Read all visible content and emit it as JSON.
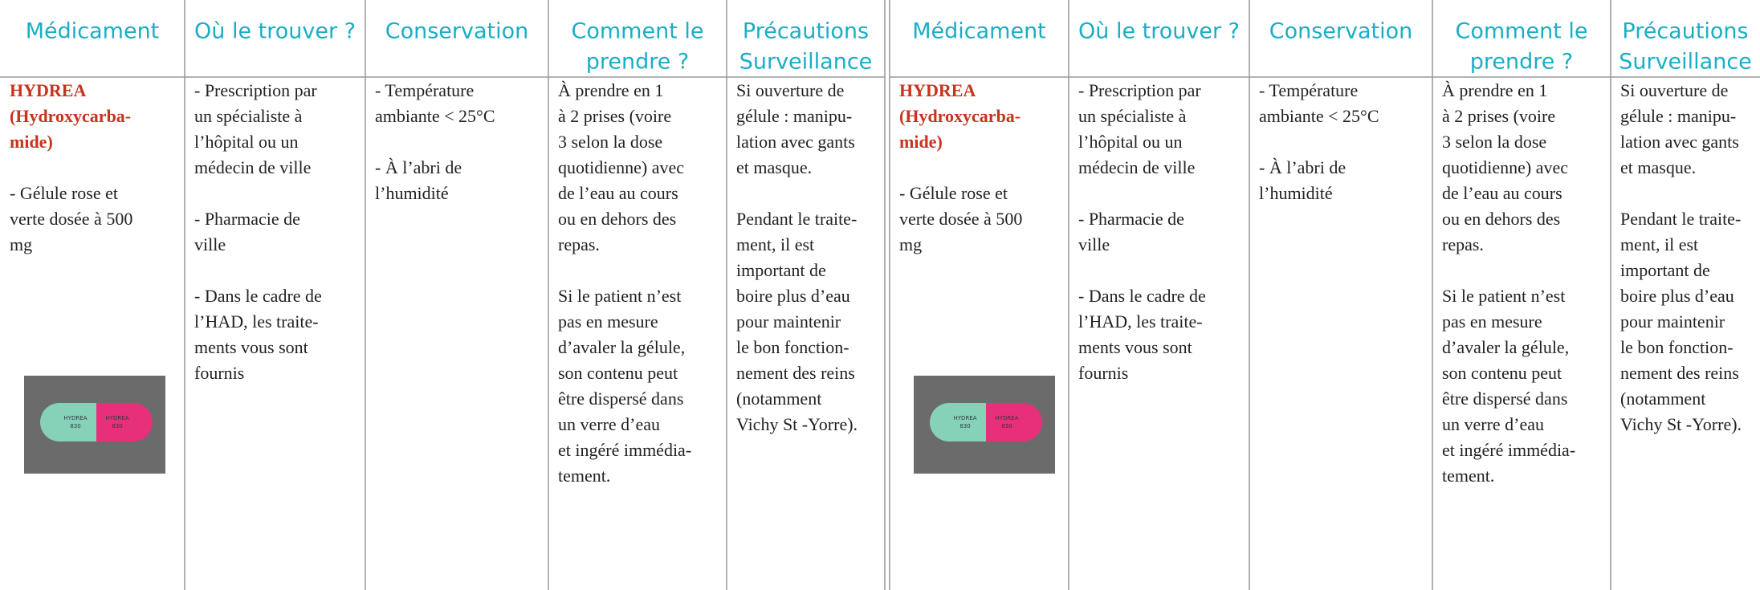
{
  "tables": [
    {
      "headers": [
        [
          "Médicament"
        ],
        [
          "Où le trouver ?"
        ],
        [
          "Conservation"
        ],
        [
          "Comment le",
          "prendre ?"
        ],
        [
          "Précautions",
          "Surveillance"
        ]
      ],
      "cells": [
        [
          [
            "HYDREA",
            "(Hydroxycarba-",
            "mide)"
          ],
          [
            "- Gélule rose et",
            "verte dosée à 500",
            "mg"
          ]
        ],
        [
          [
            "- Prescription par",
            "un spécialiste à",
            "l’hôpital ou un",
            "médecin de ville"
          ],
          [
            "- Pharmacie de",
            "ville"
          ],
          [
            "- Dans le cadre de",
            "l’HAD, les traite-",
            "ments vous sont",
            "fournis"
          ]
        ],
        [
          [
            "- Température",
            "ambiante < 25°C"
          ],
          [
            "- À l’abri de",
            "l’humidité"
          ]
        ],
        [
          [
            "À prendre en 1",
            "à 2 prises (voire",
            "3 selon la dose",
            "quotidienne) avec",
            "de l’eau au cours",
            "ou en dehors des",
            "repas."
          ],
          [
            "Si le patient n’est",
            "pas en mesure",
            "d’avaler la gélule,",
            "son contenu peut",
            "être dispersé dans",
            "un verre d’eau",
            "et ingéré immédia-",
            "tement."
          ]
        ],
        [
          [
            "Si ouverture de",
            "gélule : manipu-",
            "lation avec gants",
            "et masque."
          ],
          [
            "Pendant le traite-",
            "ment, il est",
            "important de",
            "boire plus d’eau",
            "pour maintenir",
            "le bon fonction-",
            "nement des reins",
            "(notamment",
            "Vichy St -Yorre)."
          ]
        ]
      ],
      "capsule_text": [
        "HYDREA",
        "830"
      ]
    },
    {
      "headers": [
        [
          "Médicament"
        ],
        [
          "Où le trouver ?"
        ],
        [
          "Conservation"
        ],
        [
          "Comment le",
          "prendre ?"
        ],
        [
          "Précautions",
          "Surveillance"
        ]
      ],
      "cells": [
        [
          [
            "HYDREA",
            "(Hydroxycarba-",
            "mide)"
          ],
          [
            "- Gélule rose et",
            "verte dosée à 500",
            "mg"
          ]
        ],
        [
          [
            "- Prescription par",
            "un spécialiste à",
            "l’hôpital ou un",
            "médecin de ville"
          ],
          [
            "- Pharmacie de",
            "ville"
          ],
          [
            "- Dans le cadre de",
            "l’HAD, les traite-",
            "ments vous sont",
            "fournis"
          ]
        ],
        [
          [
            "- Température",
            "ambiante < 25°C"
          ],
          [
            "- À l’abri de",
            "l’humidité"
          ]
        ],
        [
          [
            "À prendre en 1",
            "à 2 prises (voire",
            "3 selon la dose",
            "quotidienne) avec",
            "de l’eau au cours",
            "ou en dehors des",
            "repas."
          ],
          [
            "Si le patient n’est",
            "pas en mesure",
            "d’avaler la gélule,",
            "son contenu peut",
            "être dispersé dans",
            "un verre d’eau",
            "et ingéré immédia-",
            "tement."
          ]
        ],
        [
          [
            "Si ouverture de",
            "gélule : manipu-",
            "lation avec gants",
            "et masque."
          ],
          [
            "Pendant le traite-",
            "ment, il est",
            "important de",
            "boire plus d’eau",
            "pour maintenir",
            "le bon fonction-",
            "nement des reins",
            "(notamment",
            "Vichy St -Yorre)."
          ]
        ]
      ],
      "capsule_text": [
        "HYDREA",
        "830"
      ]
    }
  ]
}
